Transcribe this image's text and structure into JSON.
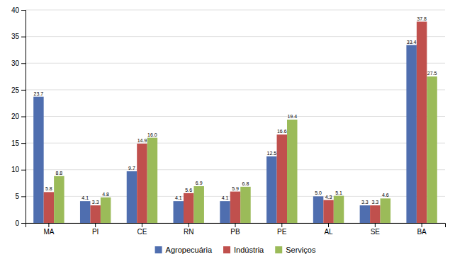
{
  "chart_data": {
    "type": "bar",
    "categories": [
      "MA",
      "PI",
      "CE",
      "RN",
      "PB",
      "PE",
      "AL",
      "SE",
      "BA"
    ],
    "series": [
      {
        "name": "Agropecuária",
        "color": "#4F6EAF",
        "values": [
          23.7,
          4.1,
          9.7,
          4.1,
          4.1,
          12.5,
          5.0,
          3.3,
          33.4
        ],
        "value_labels": [
          "23.7",
          "4.1",
          "9.7",
          "4.1",
          "4.1",
          "12.5",
          "5.0",
          "3.3",
          "33.4"
        ]
      },
      {
        "name": "Indústria",
        "color": "#C0504D",
        "values": [
          5.8,
          3.3,
          14.9,
          5.6,
          5.9,
          16.6,
          4.3,
          3.3,
          37.8
        ],
        "value_labels": [
          "5.8",
          "3.3",
          "14.9",
          "5.6",
          "5.9",
          "16.6",
          "4.3",
          "3.3",
          "37.8"
        ]
      },
      {
        "name": "Serviços",
        "color": "#9BBB59",
        "values": [
          8.8,
          4.8,
          16.0,
          6.9,
          6.8,
          19.4,
          5.1,
          4.6,
          27.5
        ],
        "value_labels": [
          "8.8",
          "4.8",
          "16.0",
          "6.9",
          "6.8",
          "19.4",
          "5.1",
          "4.6",
          "27.5"
        ]
      }
    ],
    "ylim": [
      0,
      40
    ],
    "yticks": [
      0,
      5,
      10,
      15,
      20,
      25,
      30,
      35,
      40
    ],
    "grid": true,
    "legend": "bottom",
    "data_labels": true
  }
}
